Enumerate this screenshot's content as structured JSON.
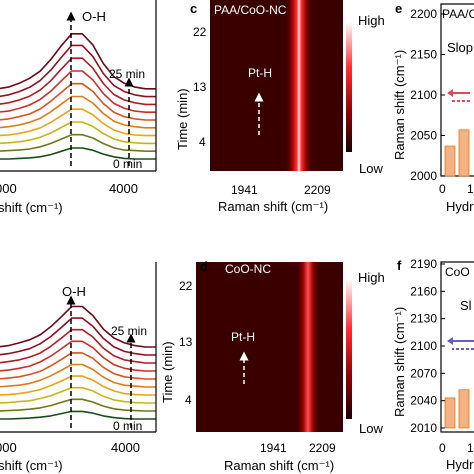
{
  "chart_data": [
    {
      "type": "line",
      "panel": "a (top-left, cropped)",
      "annotations": [
        "O-H",
        "25 min",
        "0 min"
      ],
      "xlabel": "shift (cm⁻¹)",
      "x_ticks": [
        "000",
        "4000"
      ],
      "series": [
        {
          "values": [
            0.0,
            0.0,
            0.01,
            0.02,
            0.04,
            0.08,
            0.14,
            0.2,
            0.2,
            0.16,
            0.09,
            0.04,
            0.01,
            0.0,
            0.0,
            0.0
          ],
          "color": "#1b4d1b"
        },
        {
          "values": [
            0.0,
            0.01,
            0.02,
            0.04,
            0.08,
            0.14,
            0.22,
            0.3,
            0.3,
            0.24,
            0.14,
            0.06,
            0.02,
            0.01,
            0.0,
            0.0
          ],
          "color": "#6b7a1f"
        },
        {
          "values": [
            0.0,
            0.01,
            0.03,
            0.06,
            0.11,
            0.19,
            0.29,
            0.39,
            0.39,
            0.31,
            0.18,
            0.08,
            0.03,
            0.01,
            0.0,
            0.0
          ],
          "color": "#c9b51a"
        },
        {
          "values": [
            0.0,
            0.01,
            0.04,
            0.08,
            0.14,
            0.24,
            0.36,
            0.48,
            0.48,
            0.38,
            0.22,
            0.1,
            0.04,
            0.01,
            0.0,
            0.0
          ],
          "color": "#e8a317"
        },
        {
          "values": [
            0.0,
            0.02,
            0.05,
            0.1,
            0.17,
            0.29,
            0.43,
            0.57,
            0.57,
            0.45,
            0.26,
            0.12,
            0.05,
            0.02,
            0.0,
            0.0
          ],
          "color": "#e07a18"
        },
        {
          "values": [
            0.0,
            0.02,
            0.06,
            0.11,
            0.2,
            0.34,
            0.5,
            0.66,
            0.66,
            0.52,
            0.3,
            0.14,
            0.06,
            0.02,
            0.0,
            0.0
          ],
          "color": "#d9531e"
        },
        {
          "values": [
            0.0,
            0.02,
            0.07,
            0.13,
            0.23,
            0.38,
            0.57,
            0.75,
            0.75,
            0.59,
            0.34,
            0.16,
            0.07,
            0.02,
            0.0,
            0.0
          ],
          "color": "#c9302c"
        },
        {
          "values": [
            0.0,
            0.03,
            0.08,
            0.15,
            0.26,
            0.43,
            0.64,
            0.84,
            0.84,
            0.66,
            0.38,
            0.18,
            0.08,
            0.03,
            0.0,
            0.0
          ],
          "color": "#b01c25"
        },
        {
          "values": [
            0.0,
            0.03,
            0.09,
            0.17,
            0.29,
            0.48,
            0.71,
            0.93,
            0.93,
            0.73,
            0.42,
            0.2,
            0.09,
            0.03,
            0.0,
            0.0
          ],
          "color": "#8e1020"
        },
        {
          "values": [
            0.0,
            0.03,
            0.1,
            0.19,
            0.32,
            0.53,
            0.78,
            1.0,
            1.0,
            0.8,
            0.46,
            0.22,
            0.1,
            0.03,
            0.0,
            0.0
          ],
          "color": "#6b0a16"
        }
      ]
    },
    {
      "type": "heatmap",
      "panel": "c",
      "panel_label": "c",
      "title": "PAA/CoO-NC",
      "annotation": "Pt-H",
      "xlabel": "Raman shift (cm⁻¹)",
      "ylabel": "Time (min)",
      "x_ticks": [
        "1941",
        "2209"
      ],
      "y_ticks": [
        "22",
        "13",
        "4"
      ],
      "colorbar": {
        "high": "High",
        "low": "Low"
      },
      "band_position": 2110
    },
    {
      "type": "bar",
      "panel": "e (cropped)",
      "panel_label": "e",
      "title": "PAA/C",
      "annotation": "Slop",
      "ylabel": "Raman shift (cm⁻¹)",
      "xlabel": "Hydr",
      "y_ticks": [
        "2200",
        "2150",
        "2100",
        "2050",
        "2000"
      ],
      "x_ticks": [
        "0",
        "1"
      ],
      "ylim": [
        2000,
        2200
      ],
      "values": [
        2037,
        2057
      ],
      "colors": {
        "bar": "#f4b183",
        "bar_edge": "#e07a18",
        "arrow_solid": "#e8475b",
        "arrow_dashed": "#e8475b"
      }
    },
    {
      "type": "line",
      "panel": "b (bottom-left, cropped)",
      "annotations": [
        "O-H",
        "25 min",
        "0 min"
      ],
      "xlabel": "shift (cm⁻¹)",
      "x_ticks": [
        "000",
        "4000"
      ],
      "series": [
        {
          "values": [
            0.0,
            0.0,
            0.01,
            0.02,
            0.04,
            0.07,
            0.12,
            0.17,
            0.17,
            0.13,
            0.07,
            0.03,
            0.01,
            0.0,
            0.0,
            0.0
          ],
          "color": "#1b4d1b"
        },
        {
          "values": [
            0.0,
            0.01,
            0.02,
            0.04,
            0.07,
            0.12,
            0.19,
            0.26,
            0.26,
            0.2,
            0.11,
            0.05,
            0.02,
            0.01,
            0.0,
            0.0
          ],
          "color": "#6b7a1f"
        },
        {
          "values": [
            0.0,
            0.01,
            0.03,
            0.05,
            0.1,
            0.16,
            0.25,
            0.34,
            0.34,
            0.27,
            0.15,
            0.07,
            0.03,
            0.01,
            0.0,
            0.0
          ],
          "color": "#c9b51a"
        },
        {
          "values": [
            0.0,
            0.01,
            0.03,
            0.07,
            0.12,
            0.21,
            0.31,
            0.42,
            0.42,
            0.33,
            0.19,
            0.09,
            0.03,
            0.01,
            0.0,
            0.0
          ],
          "color": "#e8a317"
        },
        {
          "values": [
            0.0,
            0.02,
            0.04,
            0.08,
            0.15,
            0.25,
            0.37,
            0.5,
            0.5,
            0.39,
            0.22,
            0.1,
            0.04,
            0.02,
            0.0,
            0.0
          ],
          "color": "#e07a18"
        },
        {
          "values": [
            0.0,
            0.02,
            0.05,
            0.1,
            0.17,
            0.29,
            0.43,
            0.58,
            0.58,
            0.46,
            0.26,
            0.12,
            0.05,
            0.02,
            0.0,
            0.0
          ],
          "color": "#d9531e"
        },
        {
          "values": [
            0.0,
            0.02,
            0.06,
            0.11,
            0.2,
            0.33,
            0.49,
            0.66,
            0.66,
            0.52,
            0.3,
            0.14,
            0.06,
            0.02,
            0.0,
            0.0
          ],
          "color": "#c9302c"
        },
        {
          "values": [
            0.0,
            0.03,
            0.07,
            0.13,
            0.22,
            0.37,
            0.55,
            0.74,
            0.74,
            0.58,
            0.33,
            0.16,
            0.07,
            0.03,
            0.0,
            0.0
          ],
          "color": "#b01c25"
        },
        {
          "values": [
            0.0,
            0.03,
            0.08,
            0.14,
            0.25,
            0.41,
            0.61,
            0.82,
            0.82,
            0.64,
            0.37,
            0.18,
            0.08,
            0.03,
            0.0,
            0.0
          ],
          "color": "#8e1020"
        },
        {
          "values": [
            0.0,
            0.03,
            0.09,
            0.16,
            0.27,
            0.45,
            0.67,
            0.9,
            0.9,
            0.7,
            0.4,
            0.2,
            0.09,
            0.03,
            0.0,
            0.0
          ],
          "color": "#6b0a16"
        }
      ]
    },
    {
      "type": "heatmap",
      "panel": "d",
      "panel_label": "d",
      "title": "CoO-NC",
      "annotation": "Pt-H",
      "xlabel": "Raman shift (cm⁻¹)",
      "ylabel": "Time (min)",
      "x_ticks": [
        "1941",
        "2209"
      ],
      "y_ticks": [
        "22",
        "13",
        "4"
      ],
      "colorbar": {
        "high": "High",
        "low": "Low"
      },
      "band_position": 2130
    },
    {
      "type": "bar",
      "panel": "f (cropped)",
      "panel_label": "f",
      "title": "CoO",
      "annotation": "Sl",
      "ylabel": "Raman shift (cm⁻¹)",
      "xlabel": "Hydr",
      "y_ticks": [
        "2190",
        "2160",
        "2130",
        "2100",
        "2070",
        "2040",
        "2010"
      ],
      "x_ticks": [
        "0",
        "1"
      ],
      "ylim": [
        2010,
        2190
      ],
      "values": [
        2043,
        2052
      ],
      "colors": {
        "bar": "#f4b183",
        "bar_edge": "#e07a18",
        "arrow_solid": "#6a5acd",
        "arrow_dashed": "#6a5acd"
      }
    }
  ]
}
